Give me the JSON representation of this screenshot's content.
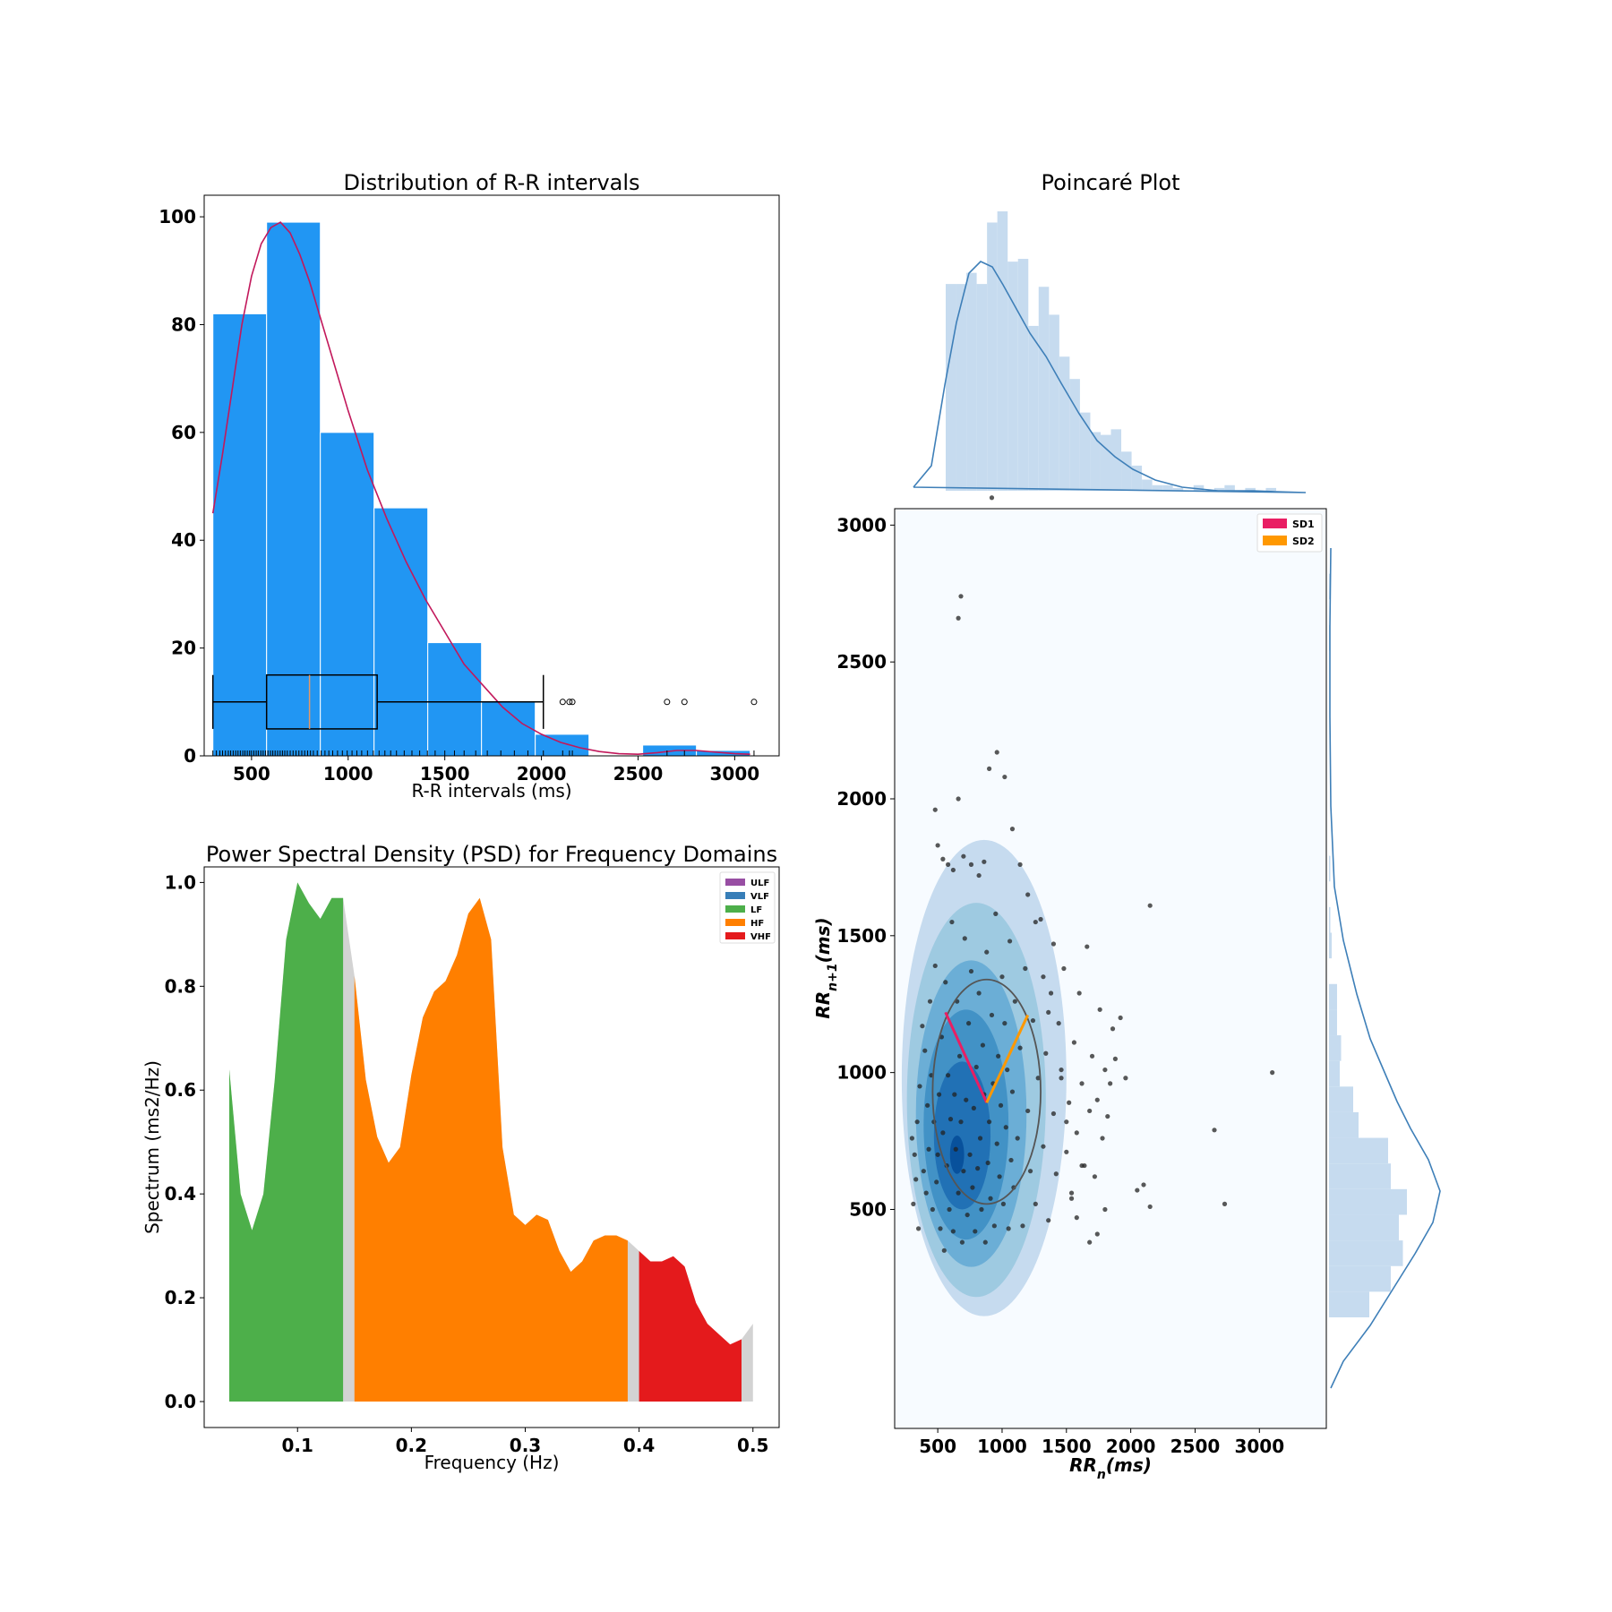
{
  "chart_data": [
    {
      "id": "rr-distribution",
      "type": "bar",
      "title": "Distribution of R-R intervals",
      "xlabel": "R-R intervals (ms)",
      "ylabel": "",
      "xlim": [
        255,
        3230
      ],
      "ylim": [
        0,
        104
      ],
      "xticks": [
        "500",
        "1000",
        "1500",
        "2000",
        "2500",
        "3000"
      ],
      "yticks": [
        "0",
        "20",
        "40",
        "60",
        "80",
        "100"
      ],
      "bar_color": "#2196F3",
      "curve_color": "#C2185B",
      "bins": [
        {
          "x0": 300,
          "x1": 578,
          "value": 82
        },
        {
          "x0": 578,
          "x1": 856,
          "value": 99
        },
        {
          "x0": 856,
          "x1": 1134,
          "value": 60
        },
        {
          "x0": 1134,
          "x1": 1412,
          "value": 46
        },
        {
          "x0": 1412,
          "x1": 1690,
          "value": 21
        },
        {
          "x0": 1690,
          "x1": 1968,
          "value": 10
        },
        {
          "x0": 1968,
          "x1": 2246,
          "value": 4
        },
        {
          "x0": 2246,
          "x1": 2524,
          "value": 0
        },
        {
          "x0": 2524,
          "x1": 2802,
          "value": 2
        },
        {
          "x0": 2802,
          "x1": 3080,
          "value": 1
        }
      ],
      "density_curve": {
        "x": [
          300,
          350,
          400,
          450,
          500,
          550,
          600,
          650,
          700,
          750,
          800,
          900,
          1000,
          1100,
          1200,
          1300,
          1400,
          1500,
          1600,
          1700,
          1800,
          1900,
          2000,
          2100,
          2200,
          2300,
          2400,
          2500,
          2600,
          2700,
          2800,
          2900,
          3000,
          3080
        ],
        "y": [
          45,
          56,
          68,
          80,
          89,
          95,
          98,
          99,
          97,
          93,
          88,
          76,
          64,
          53,
          44,
          36,
          29,
          23,
          17,
          13,
          9,
          6,
          4,
          2.5,
          1.5,
          0.8,
          0.4,
          0.3,
          0.6,
          1.0,
          1.0,
          0.7,
          0.4,
          0.3
        ]
      },
      "boxplot": {
        "y_center": 10,
        "half_height": 5,
        "whisker_low": 300,
        "q1": 578,
        "median": 800,
        "q3": 1150,
        "whisker_high": 2010,
        "median_color": "#E59866",
        "outliers": [
          2110,
          2145,
          2160,
          2650,
          2740,
          3100
        ]
      },
      "rug": [
        300,
        318,
        336,
        350,
        365,
        380,
        392,
        405,
        418,
        430,
        442,
        455,
        466,
        478,
        490,
        500,
        512,
        524,
        535,
        548,
        560,
        572,
        585,
        598,
        610,
        622,
        635,
        648,
        660,
        672,
        685,
        700,
        715,
        730,
        745,
        760,
        775,
        790,
        805,
        820,
        840,
        860,
        880,
        900,
        920,
        945,
        970,
        995,
        1020,
        1045,
        1070,
        1100,
        1130,
        1160,
        1190,
        1220,
        1250,
        1290,
        1330,
        1370,
        1410,
        1450,
        1500,
        1550,
        1600,
        1660,
        1720,
        1790,
        1860,
        1930,
        2010,
        2110,
        2145,
        2160,
        2650,
        2740,
        3100
      ]
    },
    {
      "id": "psd",
      "type": "area",
      "title": "Power Spectral Density (PSD) for Frequency Domains",
      "xlabel": "Frequency (Hz)",
      "ylabel": "Spectrum (ms2/Hz)",
      "xlim": [
        0.018,
        0.523
      ],
      "ylim": [
        -0.05,
        1.03
      ],
      "xticks": [
        "0.1",
        "0.2",
        "0.3",
        "0.4",
        "0.5"
      ],
      "yticks": [
        "0.0",
        "0.2",
        "0.4",
        "0.6",
        "0.8",
        "1.0"
      ],
      "spectrum": {
        "freq": [
          0.04,
          0.05,
          0.06,
          0.07,
          0.08,
          0.09,
          0.1,
          0.11,
          0.12,
          0.13,
          0.14,
          0.15,
          0.16,
          0.17,
          0.18,
          0.19,
          0.2,
          0.21,
          0.22,
          0.23,
          0.24,
          0.25,
          0.26,
          0.27,
          0.28,
          0.29,
          0.3,
          0.31,
          0.32,
          0.33,
          0.34,
          0.35,
          0.36,
          0.37,
          0.38,
          0.39,
          0.4,
          0.41,
          0.42,
          0.43,
          0.44,
          0.45,
          0.46,
          0.47,
          0.48,
          0.49,
          0.5
        ],
        "power": [
          0.64,
          0.4,
          0.33,
          0.4,
          0.62,
          0.89,
          1.0,
          0.96,
          0.93,
          0.97,
          0.97,
          0.82,
          0.62,
          0.51,
          0.46,
          0.49,
          0.63,
          0.74,
          0.79,
          0.81,
          0.86,
          0.94,
          0.97,
          0.89,
          0.49,
          0.36,
          0.34,
          0.36,
          0.35,
          0.29,
          0.25,
          0.27,
          0.31,
          0.32,
          0.32,
          0.31,
          0.29,
          0.27,
          0.27,
          0.28,
          0.26,
          0.19,
          0.15,
          0.13,
          0.11,
          0.12,
          0.15
        ]
      },
      "bands": [
        {
          "name": "ULF",
          "color": "#984EA3"
        },
        {
          "name": "VLF",
          "color": "#377EB8"
        },
        {
          "name": "LF",
          "color": "#4DAF4A",
          "from": 0.04,
          "to": 0.14
        },
        {
          "name": "HF",
          "color": "#FF7F00",
          "from": 0.15,
          "to": 0.39
        },
        {
          "name": "VHF",
          "color": "#E41A1C",
          "from": 0.4,
          "to": 0.49
        }
      ],
      "gap_color": "#D3D3D3",
      "legend_position": "top-right"
    },
    {
      "id": "poincare",
      "type": "scatter",
      "title": "Poincaré Plot",
      "xlabel": "RR_n(ms)",
      "ylabel": "RR_{n+1}(ms)",
      "xlim": [
        165,
        3520
      ],
      "ylim": [
        -300,
        3060
      ],
      "xticks": [
        "500",
        "1000",
        "1500",
        "2000",
        "2500",
        "3000"
      ],
      "yticks": [
        "500",
        "1000",
        "1500",
        "2000",
        "2500",
        "3000"
      ],
      "points": [
        [
          300,
          760
        ],
        [
          310,
          520
        ],
        [
          320,
          700
        ],
        [
          330,
          610
        ],
        [
          340,
          820
        ],
        [
          350,
          430
        ],
        [
          360,
          950
        ],
        [
          380,
          1170
        ],
        [
          390,
          640
        ],
        [
          400,
          1080
        ],
        [
          410,
          560
        ],
        [
          420,
          880
        ],
        [
          430,
          720
        ],
        [
          440,
          1260
        ],
        [
          450,
          990
        ],
        [
          460,
          500
        ],
        [
          470,
          820
        ],
        [
          480,
          1390
        ],
        [
          490,
          600
        ],
        [
          500,
          700
        ],
        [
          510,
          920
        ],
        [
          520,
          430
        ],
        [
          530,
          1130
        ],
        [
          540,
          780
        ],
        [
          550,
          350
        ],
        [
          560,
          1330
        ],
        [
          570,
          660
        ],
        [
          580,
          990
        ],
        [
          590,
          500
        ],
        [
          600,
          830
        ],
        [
          610,
          1550
        ],
        [
          620,
          420
        ],
        [
          630,
          920
        ],
        [
          640,
          720
        ],
        [
          650,
          1260
        ],
        [
          660,
          560
        ],
        [
          670,
          1060
        ],
        [
          680,
          820
        ],
        [
          690,
          380
        ],
        [
          700,
          640
        ],
        [
          710,
          1490
        ],
        [
          720,
          900
        ],
        [
          730,
          480
        ],
        [
          740,
          1180
        ],
        [
          750,
          700
        ],
        [
          760,
          1370
        ],
        [
          770,
          580
        ],
        [
          780,
          870
        ],
        [
          790,
          420
        ],
        [
          800,
          1020
        ],
        [
          810,
          650
        ],
        [
          820,
          1290
        ],
        [
          830,
          760
        ],
        [
          840,
          500
        ],
        [
          850,
          1100
        ],
        [
          860,
          920
        ],
        [
          870,
          380
        ],
        [
          880,
          1440
        ],
        [
          890,
          670
        ],
        [
          900,
          820
        ],
        [
          910,
          540
        ],
        [
          920,
          1210
        ],
        [
          930,
          960
        ],
        [
          940,
          440
        ],
        [
          950,
          1580
        ],
        [
          960,
          740
        ],
        [
          970,
          1060
        ],
        [
          980,
          620
        ],
        [
          990,
          880
        ],
        [
          1000,
          1350
        ],
        [
          1010,
          520
        ],
        [
          1020,
          1180
        ],
        [
          1030,
          800
        ],
        [
          1040,
          1010
        ],
        [
          1050,
          430
        ],
        [
          1060,
          1480
        ],
        [
          1070,
          680
        ],
        [
          1080,
          930
        ],
        [
          1090,
          580
        ],
        [
          1100,
          1260
        ],
        [
          1120,
          760
        ],
        [
          1140,
          1090
        ],
        [
          1160,
          440
        ],
        [
          1180,
          1380
        ],
        [
          1200,
          860
        ],
        [
          1220,
          640
        ],
        [
          1240,
          1190
        ],
        [
          1260,
          520
        ],
        [
          1280,
          980
        ],
        [
          1300,
          1560
        ],
        [
          1320,
          730
        ],
        [
          1340,
          1070
        ],
        [
          1360,
          460
        ],
        [
          1380,
          1290
        ],
        [
          1400,
          850
        ],
        [
          1420,
          630
        ],
        [
          1440,
          1180
        ],
        [
          1460,
          980
        ],
        [
          1480,
          1380
        ],
        [
          1500,
          710
        ],
        [
          1520,
          890
        ],
        [
          1540,
          540
        ],
        [
          1560,
          1110
        ],
        [
          1580,
          780
        ],
        [
          1600,
          1290
        ],
        [
          1620,
          960
        ],
        [
          1640,
          660
        ],
        [
          1660,
          1460
        ],
        [
          1680,
          860
        ],
        [
          1700,
          1060
        ],
        [
          1720,
          620
        ],
        [
          1740,
          900
        ],
        [
          1760,
          1230
        ],
        [
          1780,
          760
        ],
        [
          1800,
          1010
        ],
        [
          1820,
          840
        ],
        [
          1840,
          960
        ],
        [
          1880,
          1050
        ],
        [
          1920,
          1200
        ],
        [
          1960,
          980
        ],
        [
          480,
          1960
        ],
        [
          500,
          1830
        ],
        [
          540,
          1780
        ],
        [
          580,
          1760
        ],
        [
          620,
          1740
        ],
        [
          660,
          2000
        ],
        [
          700,
          1790
        ],
        [
          760,
          1760
        ],
        [
          820,
          1720
        ],
        [
          860,
          1770
        ],
        [
          900,
          2110
        ],
        [
          960,
          2170
        ],
        [
          1020,
          2080
        ],
        [
          1080,
          1890
        ],
        [
          1140,
          1760
        ],
        [
          1200,
          1650
        ],
        [
          1260,
          1550
        ],
        [
          1320,
          1350
        ],
        [
          1360,
          1220
        ],
        [
          1400,
          1470
        ],
        [
          1460,
          1010
        ],
        [
          1500,
          820
        ],
        [
          1540,
          560
        ],
        [
          1580,
          470
        ],
        [
          1620,
          660
        ],
        [
          1680,
          380
        ],
        [
          1740,
          410
        ],
        [
          1800,
          500
        ],
        [
          1860,
          1160
        ],
        [
          2050,
          570
        ],
        [
          2100,
          590
        ],
        [
          2150,
          510
        ],
        [
          2150,
          1610
        ],
        [
          2650,
          790
        ],
        [
          2730,
          520
        ],
        [
          3100,
          1000
        ],
        [
          920,
          3100
        ],
        [
          660,
          2660
        ],
        [
          680,
          2740
        ]
      ],
      "ellipse": {
        "cx": 880,
        "cy": 930,
        "sd1": 380,
        "sd2": 420
      },
      "sd1_line": {
        "x": [
          880,
          560
        ],
        "y": [
          890,
          1220
        ],
        "color": "#E91E63"
      },
      "sd2_line": {
        "x": [
          880,
          1200
        ],
        "y": [
          890,
          1210
        ],
        "color": "#FF9800"
      },
      "kde_levels": [
        {
          "color": "#C6DBEF",
          "rx": 640,
          "ry": 870,
          "cx": 860,
          "cy": 980
        },
        {
          "color": "#9ECAE1",
          "rx": 540,
          "ry": 720,
          "cx": 800,
          "cy": 900
        },
        {
          "color": "#6BAED6",
          "rx": 430,
          "ry": 560,
          "cx": 760,
          "cy": 850
        },
        {
          "color": "#4292C6",
          "rx": 330,
          "ry": 420,
          "cx": 720,
          "cy": 810
        },
        {
          "color": "#2171B5",
          "rx": 220,
          "ry": 270,
          "cx": 690,
          "cy": 770
        },
        {
          "color": "#08519C",
          "rx": 55,
          "ry": 70,
          "cx": 650,
          "cy": 700
        }
      ],
      "marginal_x_hist": [
        0.74,
        0.74,
        0.78,
        0.74,
        0.96,
        1.0,
        0.82,
        0.83,
        0.59,
        0.73,
        0.63,
        0.48,
        0.4,
        0.28,
        0.21,
        0.2,
        0.22,
        0.14,
        0.09,
        0.04,
        0.02,
        0.02,
        0.01,
        0.0,
        0.02,
        0.0,
        0.01,
        0.02,
        0.0,
        0.01,
        0.0,
        0.01
      ],
      "marginal_y_hist": [
        0.3,
        0.46,
        0.55,
        0.52,
        0.58,
        0.46,
        0.44,
        0.22,
        0.18,
        0.08,
        0.09,
        0.06,
        0.06,
        0.0,
        0.02,
        0.01,
        0.0,
        0.01,
        0.0,
        0.0,
        0.0,
        0.0,
        0.0,
        0.0,
        0.0,
        0.0,
        0.01,
        0.0,
        0.01,
        0.0
      ],
      "marginal_color": "#C6DBEF",
      "marginal_curve_color": "#3E7FB8",
      "legend": [
        {
          "name": "SD1",
          "color": "#E91E63"
        },
        {
          "name": "SD2",
          "color": "#FF9800"
        }
      ],
      "legend_position": "top-right"
    }
  ]
}
